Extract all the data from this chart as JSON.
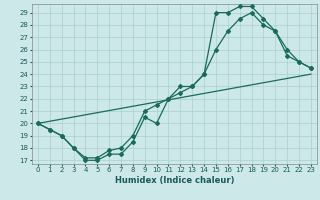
{
  "xlabel": "Humidex (Indice chaleur)",
  "bg_color": "#cce8e8",
  "grid_color": "#aacfcf",
  "line_color": "#1a6b5a",
  "xlim": [
    -0.5,
    23.5
  ],
  "ylim": [
    16.7,
    29.7
  ],
  "yticks": [
    17,
    18,
    19,
    20,
    21,
    22,
    23,
    24,
    25,
    26,
    27,
    28,
    29
  ],
  "xticks": [
    0,
    1,
    2,
    3,
    4,
    5,
    6,
    7,
    8,
    9,
    10,
    11,
    12,
    13,
    14,
    15,
    16,
    17,
    18,
    19,
    20,
    21,
    22,
    23
  ],
  "curve1_x": [
    0,
    1,
    2,
    3,
    4,
    5,
    6,
    7,
    8,
    9,
    10,
    11,
    12,
    13,
    14,
    15,
    16,
    17,
    18,
    19,
    20,
    21,
    22,
    23
  ],
  "curve1_y": [
    20,
    19.5,
    19,
    18,
    17,
    17,
    17.5,
    17.5,
    18.5,
    20.5,
    20,
    22,
    23,
    23,
    24,
    29,
    29,
    29.5,
    29.5,
    28.5,
    27.5,
    25.5,
    25,
    24.5
  ],
  "curve2_x": [
    0,
    1,
    2,
    3,
    4,
    5,
    6,
    7,
    8,
    9,
    10,
    11,
    12,
    13,
    14,
    15,
    16,
    17,
    18,
    19,
    20,
    21,
    22,
    23
  ],
  "curve2_y": [
    20,
    19.5,
    19,
    18,
    17.2,
    17.2,
    17.8,
    18,
    19,
    21,
    21.5,
    22,
    22.5,
    23,
    24,
    26,
    27.5,
    28.5,
    29,
    28,
    27.5,
    26,
    25,
    24.5
  ],
  "curve3_x": [
    0,
    23
  ],
  "curve3_y": [
    20,
    24
  ]
}
